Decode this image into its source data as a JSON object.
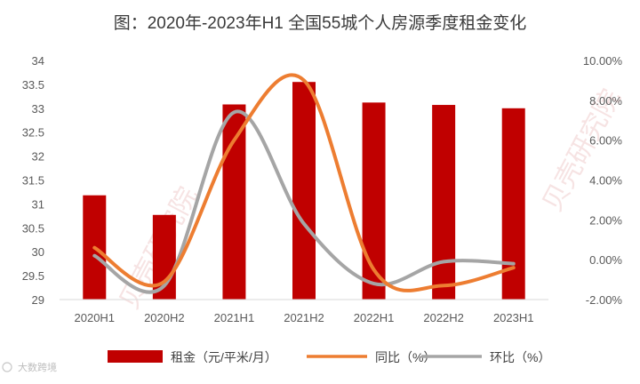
{
  "chart_data": {
    "type": "bar+line",
    "title": "图：2020年-2023年H1 全国55城个人房源季度租金变化",
    "categories": [
      "2020H1",
      "2020H2",
      "2021H1",
      "2021H2",
      "2022H1",
      "2022H2",
      "2023H1"
    ],
    "left_axis": {
      "min": 29,
      "max": 34,
      "step": 0.5,
      "tick_labels": [
        "29",
        "29.5",
        "30",
        "30.5",
        "31",
        "31.5",
        "32",
        "32.5",
        "33",
        "33.5",
        "34"
      ]
    },
    "right_axis": {
      "min": -2,
      "max": 10,
      "step": 2,
      "tick_labels": [
        "-2.00%",
        "0.00%",
        "2.00%",
        "4.00%",
        "6.00%",
        "8.00%",
        "10.00%"
      ]
    },
    "series": [
      {
        "name": "租金（元/平米/月）",
        "type": "bar",
        "axis": "left",
        "color": "#c00000",
        "values": [
          31.18,
          30.77,
          33.08,
          33.55,
          33.12,
          33.07,
          33.0
        ]
      },
      {
        "name": "同比（%）",
        "type": "line",
        "axis": "right",
        "color": "#ed7d31",
        "values": [
          0.6,
          -1.1,
          6.0,
          9.0,
          -0.5,
          -1.3,
          -0.4
        ]
      },
      {
        "name": "环比（%）",
        "type": "line",
        "axis": "right",
        "color": "#a5a5a5",
        "values": [
          0.2,
          -1.3,
          7.4,
          1.8,
          -1.2,
          -0.1,
          -0.2
        ]
      }
    ],
    "legend": [
      "租金（元/平米/月）",
      "同比（%）",
      "环比（%）"
    ],
    "legend_position": "bottom",
    "grid": false
  },
  "watermark": {
    "text": "贝壳研究院"
  },
  "footer_logo": {
    "text": "大数跨境",
    "icon": "brand-logo-icon"
  }
}
